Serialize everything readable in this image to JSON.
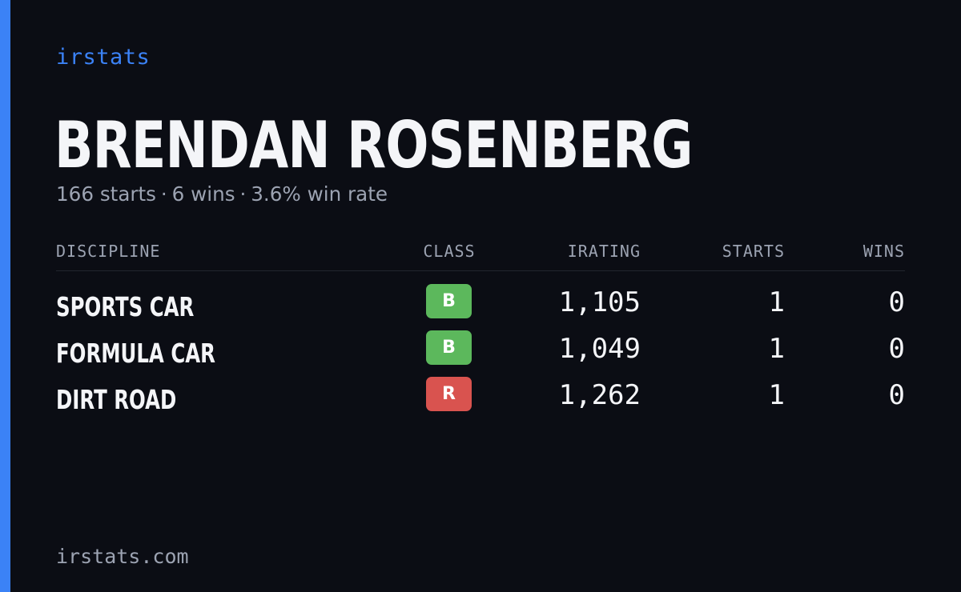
{
  "colors": {
    "accent": "#3b82f6",
    "background": "#0b0d14",
    "class_b": "#5cb85c",
    "class_r": "#d9534f"
  },
  "brand": "irstats",
  "driver": {
    "name": "BRENDAN ROSENBERG"
  },
  "summary": {
    "starts": "166 starts",
    "wins": "6 wins",
    "win_rate": "3.6% win rate",
    "separator": "·"
  },
  "table": {
    "headers": {
      "discipline": "DISCIPLINE",
      "class": "CLASS",
      "irating": "IRATING",
      "starts": "STARTS",
      "wins": "WINS"
    },
    "rows": [
      {
        "discipline": "SPORTS CAR",
        "class": "B",
        "class_color": "#5cb85c",
        "irating": "1,105",
        "starts": "1",
        "wins": "0"
      },
      {
        "discipline": "FORMULA CAR",
        "class": "B",
        "class_color": "#5cb85c",
        "irating": "1,049",
        "starts": "1",
        "wins": "0"
      },
      {
        "discipline": "DIRT ROAD",
        "class": "R",
        "class_color": "#d9534f",
        "irating": "1,262",
        "starts": "1",
        "wins": "0"
      }
    ]
  },
  "footer": "irstats.com"
}
